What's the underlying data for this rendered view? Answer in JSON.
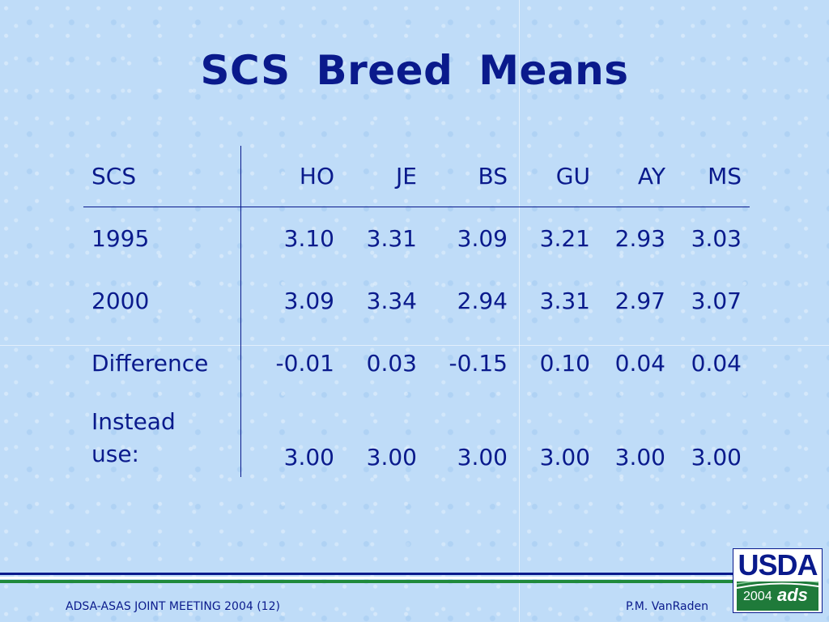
{
  "title": "SCS  Breed Means",
  "table": {
    "headers": [
      "SCS",
      "HO",
      "JE",
      "BS",
      "GU",
      "AY",
      "MS"
    ],
    "rows": [
      {
        "label": "1995",
        "values": [
          "3.10",
          "3.31",
          "3.09",
          "3.21",
          "2.93",
          "3.03"
        ]
      },
      {
        "label": "2000",
        "values": [
          "3.09",
          "3.34",
          "2.94",
          "3.31",
          "2.97",
          "3.07"
        ]
      },
      {
        "label": "Difference",
        "values": [
          "-0.01",
          "0.03",
          "-0.15",
          "0.10",
          "0.04",
          "0.04"
        ]
      },
      {
        "label_line1": "Instead",
        "label_line2": "use:",
        "values": [
          "3.00",
          "3.00",
          "3.00",
          "3.00",
          "3.00",
          "3.00"
        ]
      }
    ]
  },
  "footer": {
    "left": "ADSA-ASAS JOINT MEETING 2004 (12)",
    "right": "P.M. VanRaden"
  },
  "logo": {
    "usda": "USDA",
    "year": "2004",
    "org": "ads"
  },
  "colors": {
    "background": "#bfdcf8",
    "text": "#0a1a8c",
    "stripe_blue": "#0a1a8c",
    "stripe_green": "#1f8a3c"
  }
}
